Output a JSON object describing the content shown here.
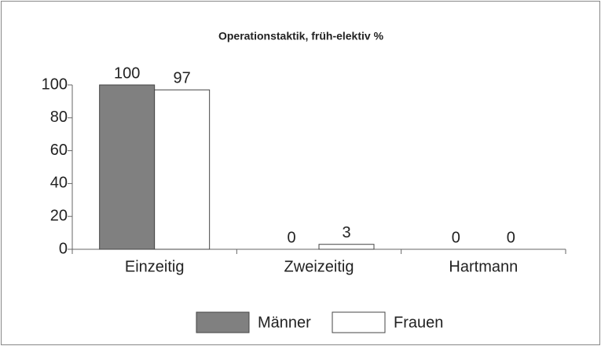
{
  "chart_data": {
    "type": "bar",
    "title": "Operationstaktik, früh-elektiv %",
    "categories": [
      "Einzeitig",
      "Zweizeitig",
      "Hartmann"
    ],
    "series": [
      {
        "name": "Männer",
        "color": "#808080",
        "values": [
          100,
          0,
          0
        ]
      },
      {
        "name": "Frauen",
        "color": "#ffffff",
        "values": [
          97,
          3,
          0
        ]
      }
    ],
    "ylim": [
      0,
      100
    ],
    "yticks": [
      0,
      20,
      40,
      60,
      80,
      100
    ],
    "grid": false,
    "legend": "bottom"
  }
}
